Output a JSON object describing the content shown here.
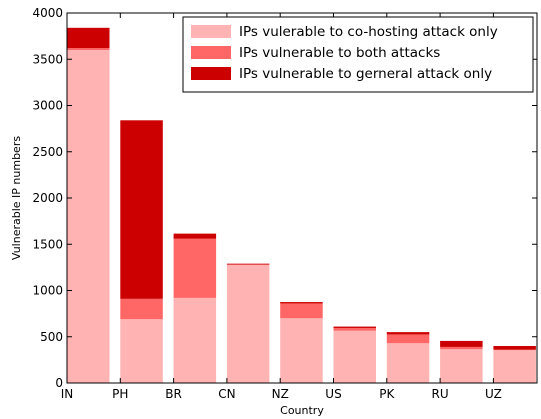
{
  "chart_data": {
    "type": "bar",
    "stacked": true,
    "xlabel": "Country",
    "ylabel": "Vulnerable IP numbers",
    "categories": [
      "IN",
      "PH",
      "BR",
      "CN",
      "NZ",
      "US",
      "PK",
      "RU",
      "UZ"
    ],
    "ylim": [
      0,
      4000
    ],
    "yticks": [
      0,
      500,
      1000,
      1500,
      2000,
      2500,
      3000,
      3500,
      4000
    ],
    "legend_position": "top-right",
    "grid": false,
    "series": [
      {
        "name": "IPs vulerable to co-hosting attack only",
        "color": "#ffb3b3",
        "values": [
          3600,
          690,
          920,
          1280,
          700,
          565,
          430,
          365,
          355
        ]
      },
      {
        "name": "IPs vulnerable to both attacks",
        "color": "#ff6666",
        "values": [
          20,
          220,
          640,
          0,
          160,
          30,
          95,
          25,
          5
        ]
      },
      {
        "name": "IPs vulnerable to gerneral attack only",
        "color": "#cc0000",
        "values": [
          220,
          1930,
          55,
          10,
          15,
          15,
          25,
          65,
          40
        ]
      }
    ]
  }
}
